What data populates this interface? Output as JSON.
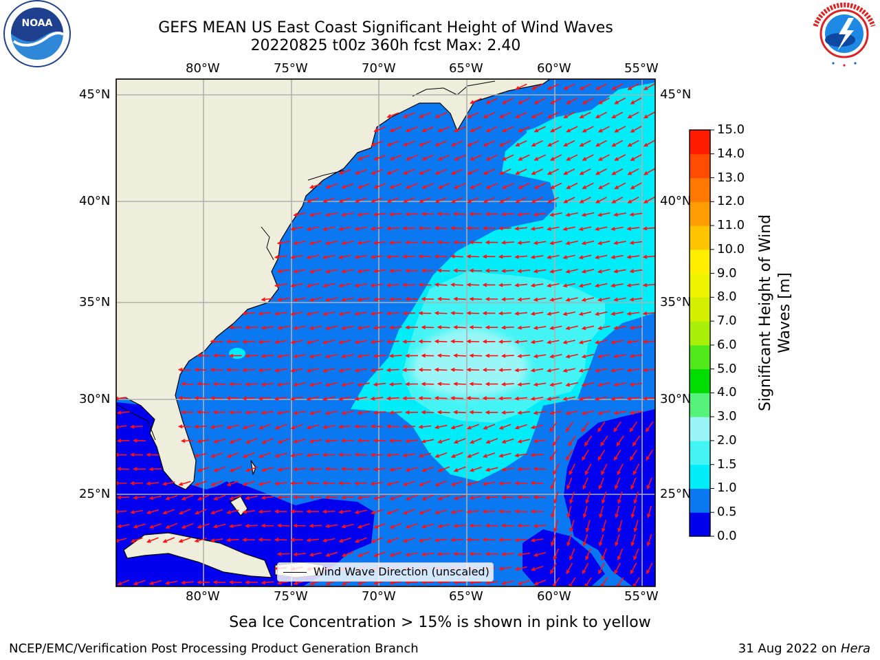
{
  "title": {
    "line1": "GEFS MEAN US East Coast Significant Height of Wind Waves",
    "line2": "20220825 t00z 360h fcst   Max: 2.40"
  },
  "logos": {
    "left": {
      "name": "NOAA",
      "ring_text": "NATIONAL OCEANIC AND ATMOSPHERIC ADMINISTRATION · U.S. DEPARTMENT OF COMMERCE",
      "colors": [
        "#1f3f8f",
        "#2f87d8",
        "#ffffff"
      ]
    },
    "right": {
      "name": "NATIONAL WEATHER SERVICE",
      "colors": [
        "#e02020",
        "#1565c0",
        "#ffffff"
      ]
    }
  },
  "map": {
    "lon_ticks": [
      "80°W",
      "75°W",
      "70°W",
      "65°W",
      "60°W",
      "55°W"
    ],
    "lat_ticks": [
      "45°N",
      "40°N",
      "35°N",
      "30°N",
      "25°N"
    ],
    "extent": {
      "lon": [
        -85,
        -54.2
      ],
      "lat": [
        20.4,
        45.8
      ]
    },
    "gridlines": true,
    "land_color": "#efeedc",
    "arrow_color": "#ff1111",
    "legend_label": "Wind Wave Direction (unscaled)"
  },
  "colorbar": {
    "title": "Significant Height of Wind Waves [m]",
    "levels": [
      "0.0",
      "0.5",
      "1.0",
      "1.5",
      "2.0",
      "3.0",
      "4.0",
      "5.0",
      "6.0",
      "7.0",
      "8.0",
      "9.0",
      "10.0",
      "11.0",
      "12.0",
      "13.0",
      "14.0",
      "15.0"
    ],
    "colors": [
      "#0000ee",
      "#0a78f0",
      "#00ecf8",
      "#44f4f4",
      "#9af6f6",
      "#55f27a",
      "#00dc00",
      "#50e81a",
      "#a8f00a",
      "#d2f000",
      "#eef400",
      "#ffee00",
      "#ffc400",
      "#ff9c00",
      "#ff7800",
      "#ff4c00",
      "#ff1c00"
    ]
  },
  "footer": {
    "note": "Sea Ice Concentration > 15% is shown in pink to yellow",
    "left": "NCEP/EMC/Verification Post Processing Product Generation Branch",
    "right_date": "31 Aug 2022 on ",
    "right_host": "Hera"
  }
}
